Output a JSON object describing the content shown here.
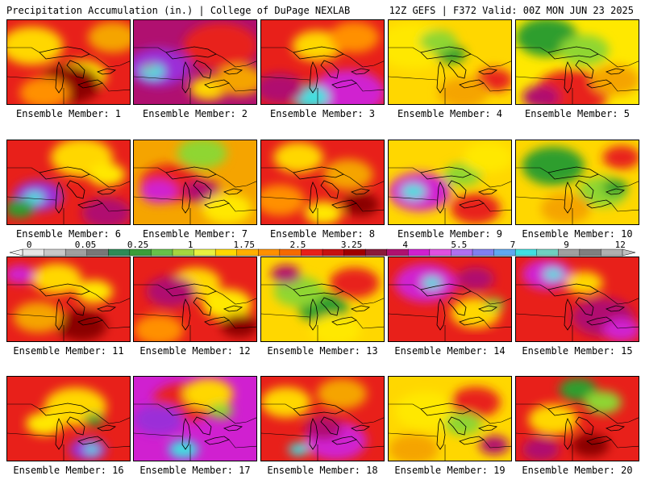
{
  "header": {
    "left": "Precipitation Accumulation (in.) | College of DuPage NEXLAB",
    "right": "12Z GEFS | F372 Valid: 00Z MON JUN 23 2025"
  },
  "panels": [
    {
      "label": "Ensemble Member: 1",
      "base": "#e8201a",
      "blobs": [
        [
          "#ffd700",
          0.2,
          0.3,
          0.25
        ],
        [
          "#ffe800",
          0.6,
          0.65,
          0.2
        ],
        [
          "#f5a400",
          0.85,
          0.2,
          0.2
        ],
        [
          "#8b0000",
          0.5,
          0.75,
          0.25
        ],
        [
          "#ff9000",
          0.3,
          0.85,
          0.2
        ]
      ]
    },
    {
      "label": "Ensemble Member: 2",
      "base": "#b01070",
      "blobs": [
        [
          "#e8201a",
          0.7,
          0.3,
          0.3
        ],
        [
          "#9b2fd8",
          0.2,
          0.55,
          0.25
        ],
        [
          "#40e0e0",
          0.15,
          0.6,
          0.1
        ],
        [
          "#a0a0a0",
          0.12,
          0.55,
          0.05
        ],
        [
          "#ffd700",
          0.6,
          0.8,
          0.15
        ],
        [
          "#f5a400",
          0.85,
          0.7,
          0.2
        ]
      ]
    },
    {
      "label": "Ensemble Member: 3",
      "base": "#e8201a",
      "blobs": [
        [
          "#ffd700",
          0.45,
          0.3,
          0.2
        ],
        [
          "#ff9000",
          0.75,
          0.2,
          0.2
        ],
        [
          "#d020d0",
          0.7,
          0.85,
          0.3
        ],
        [
          "#40e0e0",
          0.4,
          0.9,
          0.15
        ],
        [
          "#b01070",
          0.15,
          0.8,
          0.2
        ]
      ]
    },
    {
      "label": "Ensemble Member: 4",
      "base": "#ffd700",
      "blobs": [
        [
          "#ffe800",
          0.2,
          0.3,
          0.3
        ],
        [
          "#2e9e2e",
          0.5,
          0.4,
          0.12
        ],
        [
          "#8fd630",
          0.4,
          0.25,
          0.15
        ],
        [
          "#e8201a",
          0.85,
          0.7,
          0.15
        ],
        [
          "#f5a400",
          0.6,
          0.85,
          0.2
        ]
      ]
    },
    {
      "label": "Ensemble Member: 5",
      "base": "#ffe800",
      "blobs": [
        [
          "#2e9e2e",
          0.25,
          0.2,
          0.25
        ],
        [
          "#8fd630",
          0.55,
          0.35,
          0.2
        ],
        [
          "#e8201a",
          0.45,
          0.85,
          0.3
        ],
        [
          "#b01070",
          0.2,
          0.9,
          0.15
        ],
        [
          "#f5a400",
          0.8,
          0.7,
          0.2
        ]
      ]
    },
    {
      "label": "Ensemble Member: 6",
      "base": "#e8201a",
      "blobs": [
        [
          "#ffd700",
          0.6,
          0.2,
          0.25
        ],
        [
          "#ffe800",
          0.8,
          0.4,
          0.15
        ],
        [
          "#9b2fd8",
          0.25,
          0.65,
          0.2
        ],
        [
          "#40e0e0",
          0.22,
          0.67,
          0.08
        ],
        [
          "#2e9e2e",
          0.1,
          0.8,
          0.12
        ],
        [
          "#b01070",
          0.8,
          0.85,
          0.2
        ]
      ]
    },
    {
      "label": "Ensemble Member: 7",
      "base": "#f5a400",
      "blobs": [
        [
          "#8fd630",
          0.55,
          0.15,
          0.2
        ],
        [
          "#e8201a",
          0.3,
          0.5,
          0.25
        ],
        [
          "#b01070",
          0.55,
          0.6,
          0.15
        ],
        [
          "#d020d0",
          0.2,
          0.6,
          0.15
        ],
        [
          "#ffe800",
          0.75,
          0.8,
          0.2
        ]
      ]
    },
    {
      "label": "Ensemble Member: 8",
      "base": "#e8201a",
      "blobs": [
        [
          "#ffd700",
          0.3,
          0.2,
          0.2
        ],
        [
          "#f5a400",
          0.7,
          0.4,
          0.2
        ],
        [
          "#ffe800",
          0.5,
          0.85,
          0.15
        ],
        [
          "#8b0000",
          0.8,
          0.75,
          0.15
        ],
        [
          "#ff9000",
          0.15,
          0.7,
          0.2
        ]
      ]
    },
    {
      "label": "Ensemble Member: 9",
      "base": "#ffd700",
      "blobs": [
        [
          "#d020d0",
          0.25,
          0.6,
          0.25
        ],
        [
          "#40e0e0",
          0.2,
          0.6,
          0.1
        ],
        [
          "#8fd630",
          0.6,
          0.4,
          0.15
        ],
        [
          "#e8201a",
          0.7,
          0.8,
          0.2
        ],
        [
          "#ffe800",
          0.8,
          0.2,
          0.2
        ]
      ]
    },
    {
      "label": "Ensemble Member: 10",
      "base": "#ffd700",
      "blobs": [
        [
          "#2e9e2e",
          0.3,
          0.3,
          0.25
        ],
        [
          "#8fd630",
          0.7,
          0.6,
          0.2
        ],
        [
          "#2e9e2e",
          0.8,
          0.55,
          0.1
        ],
        [
          "#f5a400",
          0.4,
          0.8,
          0.2
        ],
        [
          "#e8201a",
          0.85,
          0.2,
          0.15
        ]
      ]
    },
    {
      "label": "Ensemble Member: 11",
      "base": "#e8201a",
      "blobs": [
        [
          "#ffd700",
          0.4,
          0.25,
          0.2
        ],
        [
          "#ffe800",
          0.7,
          0.4,
          0.15
        ],
        [
          "#d020d0",
          0.1,
          0.2,
          0.12
        ],
        [
          "#8b0000",
          0.6,
          0.8,
          0.2
        ],
        [
          "#f5a400",
          0.25,
          0.7,
          0.2
        ]
      ]
    },
    {
      "label": "Ensemble Member: 12",
      "base": "#e8201a",
      "blobs": [
        [
          "#ffd700",
          0.5,
          0.3,
          0.2
        ],
        [
          "#ffe800",
          0.75,
          0.55,
          0.2
        ],
        [
          "#b01070",
          0.3,
          0.4,
          0.2
        ],
        [
          "#ff9000",
          0.2,
          0.85,
          0.2
        ],
        [
          "#8b0000",
          0.85,
          0.8,
          0.15
        ]
      ]
    },
    {
      "label": "Ensemble Member: 13",
      "base": "#ffd700",
      "blobs": [
        [
          "#2e9e2e",
          0.5,
          0.6,
          0.2
        ],
        [
          "#8fd630",
          0.3,
          0.4,
          0.2
        ],
        [
          "#e8201a",
          0.75,
          0.3,
          0.2
        ],
        [
          "#b01070",
          0.2,
          0.2,
          0.12
        ],
        [
          "#ffe800",
          0.6,
          0.85,
          0.2
        ]
      ]
    },
    {
      "label": "Ensemble Member: 14",
      "base": "#e8201a",
      "blobs": [
        [
          "#d020d0",
          0.3,
          0.3,
          0.25
        ],
        [
          "#40e0e0",
          0.35,
          0.3,
          0.08
        ],
        [
          "#ffd700",
          0.7,
          0.65,
          0.2
        ],
        [
          "#b01070",
          0.7,
          0.25,
          0.15
        ],
        [
          "#8fd630",
          0.85,
          0.55,
          0.08
        ]
      ]
    },
    {
      "label": "Ensemble Member: 15",
      "base": "#e8201a",
      "blobs": [
        [
          "#d020d0",
          0.25,
          0.2,
          0.2
        ],
        [
          "#40e0e0",
          0.3,
          0.2,
          0.08
        ],
        [
          "#b01070",
          0.7,
          0.7,
          0.25
        ],
        [
          "#d020d0",
          0.85,
          0.85,
          0.15
        ],
        [
          "#ffd700",
          0.55,
          0.3,
          0.15
        ]
      ]
    },
    {
      "label": "Ensemble Member: 16",
      "base": "#e8201a",
      "blobs": [
        [
          "#ffd700",
          0.55,
          0.35,
          0.25
        ],
        [
          "#ffe800",
          0.3,
          0.55,
          0.15
        ],
        [
          "#9b2fd8",
          0.65,
          0.85,
          0.15
        ],
        [
          "#40e0e0",
          0.68,
          0.85,
          0.06
        ],
        [
          "#2e9e2e",
          0.7,
          0.5,
          0.08
        ]
      ]
    },
    {
      "label": "Ensemble Member: 17",
      "base": "#d020d0",
      "blobs": [
        [
          "#e8201a",
          0.4,
          0.3,
          0.25
        ],
        [
          "#ffd700",
          0.6,
          0.2,
          0.2
        ],
        [
          "#40e0e0",
          0.4,
          0.85,
          0.12
        ],
        [
          "#9b2fd8",
          0.2,
          0.5,
          0.2
        ],
        [
          "#8fd630",
          0.7,
          0.4,
          0.1
        ]
      ]
    },
    {
      "label": "Ensemble Member: 18",
      "base": "#e8201a",
      "blobs": [
        [
          "#ffd700",
          0.2,
          0.3,
          0.2
        ],
        [
          "#f5a400",
          0.65,
          0.2,
          0.2
        ],
        [
          "#d020d0",
          0.6,
          0.75,
          0.25
        ],
        [
          "#40e0e0",
          0.3,
          0.85,
          0.08
        ],
        [
          "#b01070",
          0.5,
          0.6,
          0.15
        ]
      ]
    },
    {
      "label": "Ensemble Member: 19",
      "base": "#ffd700",
      "blobs": [
        [
          "#ffe800",
          0.3,
          0.4,
          0.25
        ],
        [
          "#e8201a",
          0.7,
          0.3,
          0.2
        ],
        [
          "#8fd630",
          0.6,
          0.55,
          0.15
        ],
        [
          "#f5a400",
          0.2,
          0.85,
          0.2
        ],
        [
          "#b01070",
          0.85,
          0.8,
          0.12
        ]
      ]
    },
    {
      "label": "Ensemble Member: 20",
      "base": "#e8201a",
      "blobs": [
        [
          "#2e9e2e",
          0.5,
          0.15,
          0.15
        ],
        [
          "#8fd630",
          0.7,
          0.3,
          0.15
        ],
        [
          "#ffd700",
          0.3,
          0.5,
          0.2
        ],
        [
          "#b01070",
          0.2,
          0.85,
          0.15
        ],
        [
          "#8b0000",
          0.6,
          0.8,
          0.15
        ]
      ]
    }
  ],
  "colorbar": {
    "colors": [
      "#e6e6e6",
      "#c8c8c8",
      "#a0a0a0",
      "#787878",
      "#2e8b57",
      "#3a9e3a",
      "#66c24a",
      "#a5d640",
      "#e8f040",
      "#ffd700",
      "#ffb000",
      "#ff9000",
      "#f56a00",
      "#e8201a",
      "#c81010",
      "#a00000",
      "#8b1a3a",
      "#b01070",
      "#d020d0",
      "#e050e0",
      "#b070f0",
      "#8080f0",
      "#60a8f0",
      "#40e0e0",
      "#70d0c0",
      "#a0a0a0",
      "#808080",
      "#b0b0b0"
    ],
    "ticks": [
      {
        "label": "0",
        "frac": 0.036
      },
      {
        "label": "0.05",
        "frac": 0.125
      },
      {
        "label": "0.25",
        "frac": 0.208
      },
      {
        "label": "1",
        "frac": 0.291
      },
      {
        "label": "1.75",
        "frac": 0.376
      },
      {
        "label": "2.5",
        "frac": 0.461
      },
      {
        "label": "3.25",
        "frac": 0.546
      },
      {
        "label": "4",
        "frac": 0.631
      },
      {
        "label": "5.5",
        "frac": 0.716
      },
      {
        "label": "7",
        "frac": 0.801
      },
      {
        "label": "9",
        "frac": 0.886
      },
      {
        "label": "12",
        "frac": 0.971
      }
    ]
  }
}
